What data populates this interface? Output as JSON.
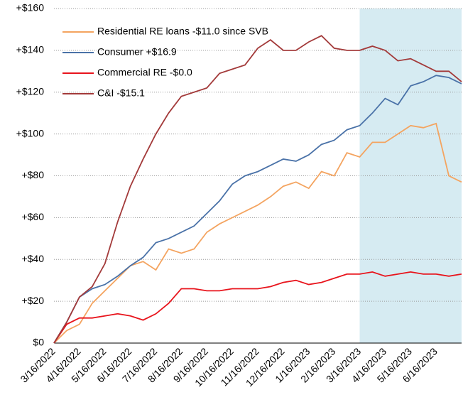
{
  "chart_data": {
    "type": "line",
    "categories": [
      "3/16/2022",
      null,
      "4/16/2022",
      null,
      "5/16/2022",
      null,
      "6/16/2022",
      null,
      "7/16/2022",
      null,
      "8/16/2022",
      null,
      "9/16/2022",
      null,
      "10/16/2022",
      null,
      "11/16/2022",
      null,
      "12/16/2022",
      null,
      "1/16/2023",
      null,
      "2/16/2023",
      null,
      "3/16/2023",
      null,
      "4/16/2023",
      null,
      "5/16/2023",
      null,
      "6/16/2023",
      null,
      null
    ],
    "series": [
      {
        "name": "Residential RE loans -$11.0 since SVB",
        "color": "#f4a460",
        "values": [
          0,
          6,
          9,
          19,
          25,
          31,
          37,
          39,
          35,
          45,
          43,
          45,
          53,
          57,
          60,
          63,
          66,
          70,
          75,
          77,
          74,
          82,
          80,
          91,
          89,
          96,
          96,
          100,
          104,
          103,
          105,
          80,
          77
        ]
      },
      {
        "name": "Consumer +$16.9",
        "color": "#4a72a8",
        "values": [
          0,
          10,
          22,
          26,
          28,
          32,
          37,
          41,
          48,
          50,
          53,
          56,
          62,
          68,
          76,
          80,
          82,
          85,
          88,
          87,
          90,
          95,
          97,
          102,
          104,
          110,
          117,
          114,
          123,
          125,
          128,
          127,
          124
        ]
      },
      {
        "name": "Commercial RE -$0.0",
        "color": "#e8141c",
        "values": [
          0,
          9,
          12,
          12,
          13,
          14,
          13,
          11,
          14,
          19,
          26,
          26,
          25,
          25,
          26,
          26,
          26,
          27,
          29,
          30,
          28,
          29,
          31,
          33,
          33,
          34,
          32,
          33,
          34,
          33,
          33,
          32,
          33
        ]
      },
      {
        "name": "C&I -$15.1",
        "color": "#a33a3a",
        "values": [
          0,
          10,
          22,
          27,
          38,
          58,
          75,
          88,
          100,
          110,
          118,
          120,
          122,
          129,
          131,
          133,
          141,
          145,
          140,
          140,
          144,
          147,
          141,
          140,
          140,
          142,
          140,
          135,
          136,
          133,
          130,
          130,
          125
        ]
      }
    ],
    "ylim": [
      0,
      160
    ],
    "yticks": [
      {
        "value": 0,
        "label": "$0"
      },
      {
        "value": 20,
        "label": "+$20"
      },
      {
        "value": 40,
        "label": "+$40"
      },
      {
        "value": 60,
        "label": "+$60"
      },
      {
        "value": 80,
        "label": "+$80"
      },
      {
        "value": 100,
        "label": "+$100"
      },
      {
        "value": 120,
        "label": "+$120"
      },
      {
        "value": 140,
        "label": "+$140"
      },
      {
        "value": 160,
        "label": "+$160"
      }
    ],
    "grid": true,
    "legend": "top-left"
  }
}
